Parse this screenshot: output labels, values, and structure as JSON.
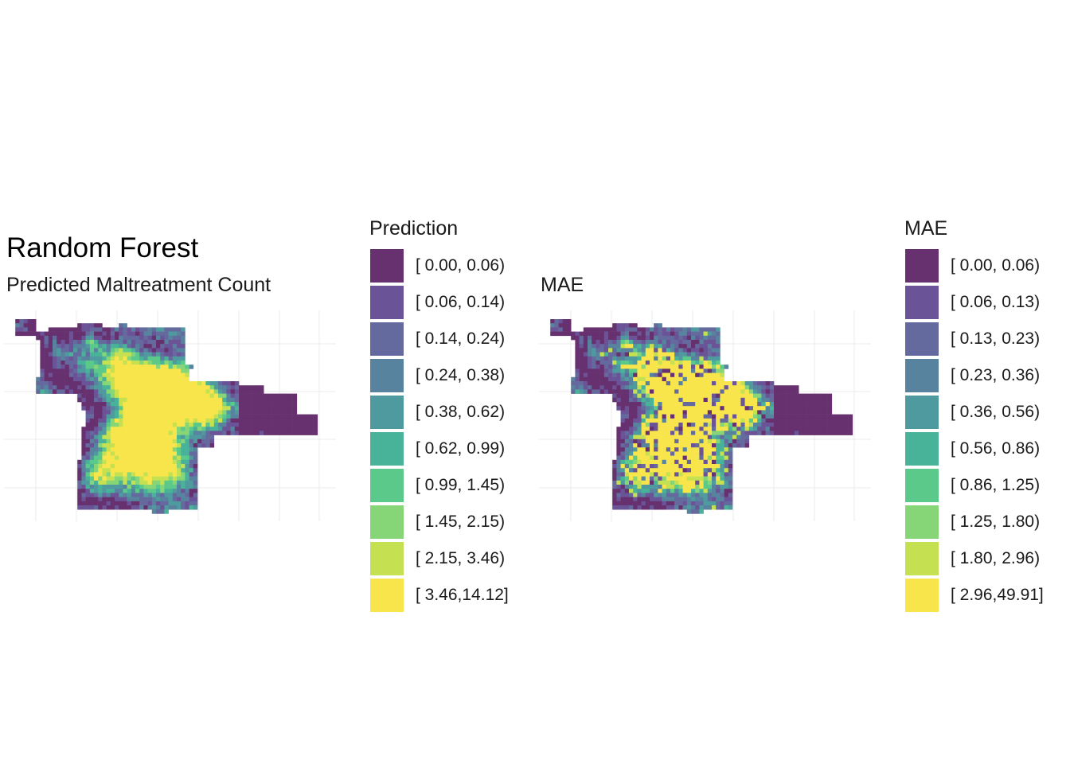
{
  "title": "Random Forest",
  "subtitle": "Predicted Maltreatment Count",
  "right_panel_title": "MAE",
  "palette": [
    "#67306e",
    "#6a5396",
    "#646a9e",
    "#58839f",
    "#4e9a9f",
    "#49b39a",
    "#5bc98a",
    "#86d678",
    "#c5e152",
    "#f7e54b"
  ],
  "legend_prediction": {
    "title": "Prediction",
    "labels": [
      "[ 0.00, 0.06)",
      "[ 0.06, 0.14)",
      "[ 0.14, 0.24)",
      "[ 0.24, 0.38)",
      "[ 0.38, 0.62)",
      "[ 0.62, 0.99)",
      "[ 0.99, 1.45)",
      "[ 1.45, 2.15)",
      "[ 2.15, 3.46)",
      "[ 3.46,14.12]"
    ]
  },
  "legend_mae": {
    "title": "MAE",
    "labels": [
      "[ 0.00, 0.06)",
      "[ 0.06, 0.13)",
      "[ 0.13, 0.23)",
      "[ 0.23, 0.36)",
      "[ 0.36, 0.56)",
      "[ 0.56, 0.86)",
      "[ 0.86, 1.25)",
      "[ 1.25, 1.80)",
      "[ 1.80, 2.96)",
      "[ 2.96,49.91]"
    ]
  }
}
